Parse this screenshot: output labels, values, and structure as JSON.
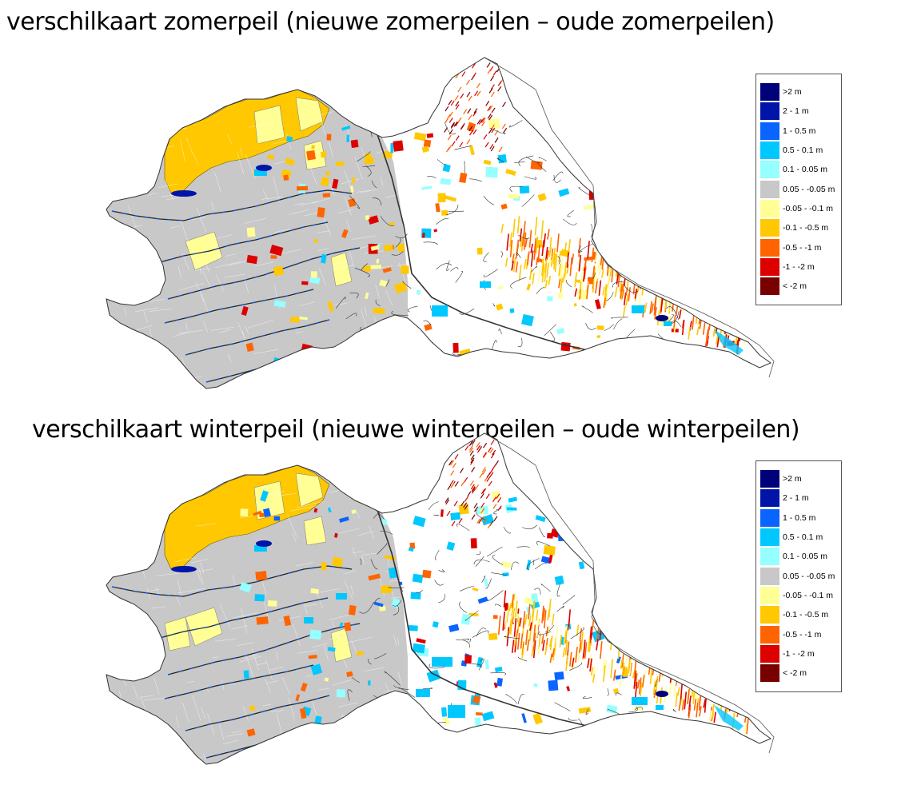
{
  "maps": [
    {
      "title": "verschilkaart zomerpeil (nieuwe zomerpeilen – oude zomerpeilen)",
      "season": "summer"
    },
    {
      "title": "verschilkaart winterpeil (nieuwe winterpeilen – oude winterpeilen)",
      "season": "winter"
    }
  ],
  "legend": [
    {
      "label": ">2 m",
      "color": "#00007a"
    },
    {
      "label": "2 - 1 m",
      "color": "#0014a8"
    },
    {
      "label": "1 - 0.5 m",
      "color": "#0a64ff"
    },
    {
      "label": "0.5 - 0.1 m",
      "color": "#00c8ff"
    },
    {
      "label": "0.1 - 0.05 m",
      "color": "#96ffff"
    },
    {
      "label": "0.05 - -0.05 m",
      "color": "#c8c8c8"
    },
    {
      "label": "-0.05 - -0.1 m",
      "color": "#ffff96"
    },
    {
      "label": "-0.1 - -0.5 m",
      "color": "#ffc800"
    },
    {
      "label": "-0.5 - -1 m",
      "color": "#ff6400"
    },
    {
      "label": "-1 - -2 m",
      "color": "#dc0000"
    },
    {
      "label": "< -2 m",
      "color": "#780000"
    }
  ]
}
